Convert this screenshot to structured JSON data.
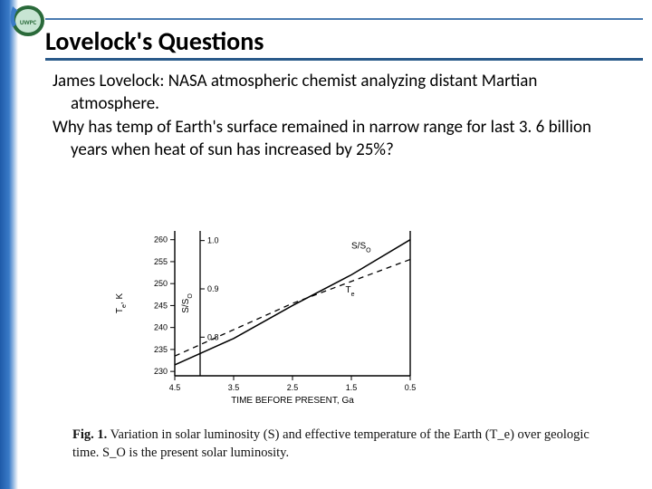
{
  "title": "Lovelock's Questions",
  "paragraphs": [
    "James Lovelock:  NASA atmospheric chemist analyzing distant Martian atmosphere.",
    "Why has temp of Earth's surface remained in narrow range for last 3. 6 billion years when heat of sun has increased by 25%?"
  ],
  "chart": {
    "type": "line",
    "x_label": "TIME BEFORE PRESENT, Ga",
    "y_label_left": "T_e, K",
    "y_label_right": "S/S_O",
    "x_ticks": [
      4.5,
      3.5,
      2.5,
      1.5,
      0.5
    ],
    "y_left_ticks": [
      230,
      235,
      240,
      245,
      250,
      255,
      260
    ],
    "y_right_ticks": [
      0.8,
      0.9,
      1.0
    ],
    "y_left_lim": [
      229,
      262
    ],
    "y_right_lim": [
      0.72,
      1.02
    ],
    "series": [
      {
        "name": "S/S_O",
        "label": "S/S_O",
        "dash": "solid",
        "color": "#000000",
        "width": 1.5,
        "points": [
          [
            4.5,
            231.5
          ],
          [
            3.5,
            237.5
          ],
          [
            2.5,
            245.0
          ],
          [
            1.5,
            252.0
          ],
          [
            0.5,
            260.0
          ]
        ],
        "label_pos": [
          1.5,
          258
        ]
      },
      {
        "name": "T_e",
        "label": "T_e",
        "dash": "dashed",
        "color": "#000000",
        "width": 1.3,
        "points": [
          [
            4.5,
            233.5
          ],
          [
            3.5,
            239.5
          ],
          [
            2.5,
            245.5
          ],
          [
            1.5,
            250.5
          ],
          [
            0.5,
            255.5
          ]
        ],
        "label_pos": [
          1.6,
          248
        ]
      }
    ],
    "background_color": "#ffffff",
    "axis_color": "#000000",
    "tick_fontsize": 9,
    "label_fontsize": 10
  },
  "caption": {
    "prefix": "Fig. 1.",
    "text": "Variation in solar luminosity (S) and effective temperature of the Earth (T_e) over geologic time. S_O is the present solar luminosity."
  },
  "colors": {
    "rule": "#2a5a8a",
    "top_rule": "#4a7bb0",
    "sidebar_start": "#1e5aa8",
    "sidebar_end": "#ffffff",
    "text": "#000000"
  }
}
